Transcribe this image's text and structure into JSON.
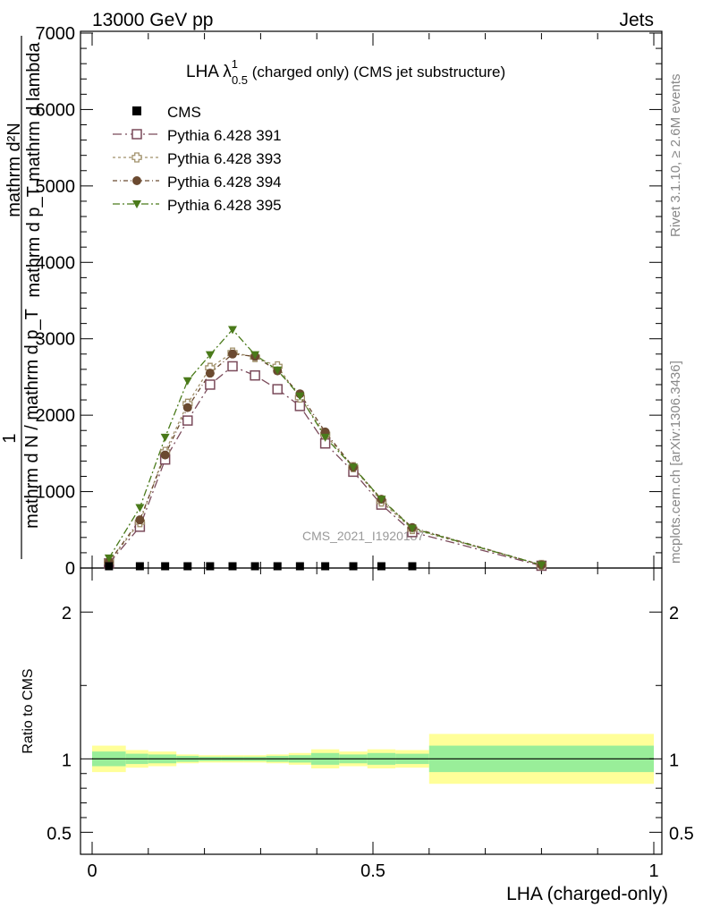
{
  "header": {
    "left": "13000 GeV pp",
    "right": "Jets"
  },
  "side_labels": {
    "rivet": "Rivet 3.1.10, ≥ 2.6M events",
    "mcplots": "mcplots.cern.ch [arXiv:1306.3436]"
  },
  "watermark": "CMS_2021_I1920187",
  "chart_data": {
    "type": "line",
    "title_main": "LHA λ",
    "title_sup": "1",
    "title_sub": "0.5",
    "title_rest": " (charged only) (CMS jet substructure)",
    "ylabel_top": "mathrm d²N",
    "ylabel_top_under": "mathrm d p_T mathrm d lambda",
    "ylabel_one": "1",
    "ylabel_bottom": "mathrm d N / mathrm d p_T",
    "xlabel": "LHA (charged-only)",
    "xlim": [
      0,
      1
    ],
    "ylim": [
      0,
      7000
    ],
    "y_ticks": [
      0,
      1000,
      2000,
      3000,
      4000,
      5000,
      6000,
      7000
    ],
    "y_tick_labels": [
      "0",
      "1000",
      "2000",
      "3000",
      "4000",
      "5000",
      "6000",
      "7000"
    ],
    "x_ticks": [
      0,
      0.5,
      1
    ],
    "x_tick_labels": [
      "0",
      "0.5",
      "1"
    ],
    "legend_position": "top-left",
    "bin_edges": [
      0,
      0.06,
      0.1,
      0.15,
      0.19,
      0.23,
      0.27,
      0.31,
      0.35,
      0.39,
      0.44,
      0.49,
      0.54,
      0.6,
      1.0
    ],
    "x": [
      0.03,
      0.085,
      0.13,
      0.17,
      0.21,
      0.25,
      0.29,
      0.33,
      0.37,
      0.415,
      0.465,
      0.515,
      0.57,
      0.8
    ],
    "cms": [
      0,
      5,
      8,
      10,
      12,
      12,
      12,
      11,
      10,
      9,
      7,
      5,
      3,
      0
    ],
    "series": [
      {
        "name": "Pythia 6.428 391",
        "marker": "open-square",
        "color": "#7a4a5a",
        "values": [
          60,
          540,
          1420,
          1930,
          2400,
          2640,
          2520,
          2340,
          2120,
          1630,
          1260,
          830,
          470,
          30
        ]
      },
      {
        "name": "Pythia 6.428 393",
        "marker": "open-cross",
        "color": "#a0906a",
        "values": [
          80,
          600,
          1520,
          2150,
          2620,
          2820,
          2760,
          2640,
          2230,
          1750,
          1320,
          870,
          510,
          40
        ]
      },
      {
        "name": "Pythia 6.428 394",
        "marker": "filled-circle",
        "color": "#6b4a30",
        "values": [
          80,
          630,
          1480,
          2100,
          2550,
          2800,
          2770,
          2580,
          2280,
          1780,
          1320,
          900,
          530,
          40
        ]
      },
      {
        "name": "Pythia 6.428 395",
        "marker": "filled-triangle",
        "color": "#4a7a1a",
        "values": [
          130,
          790,
          1710,
          2450,
          2790,
          3120,
          2790,
          2590,
          2250,
          1710,
          1320,
          900,
          520,
          40
        ]
      }
    ],
    "legend_cms": "CMS",
    "ratio": {
      "ylabel": "Ratio to CMS",
      "ylim": [
        0.35,
        2.3
      ],
      "y_ticks": [
        0.5,
        1,
        2
      ],
      "y_tick_labels": [
        "0.5",
        "1",
        "2"
      ],
      "band_inner": [
        0.05,
        0.035,
        0.03,
        0.02,
        0.015,
        0.015,
        0.015,
        0.02,
        0.025,
        0.04,
        0.03,
        0.04,
        0.035,
        0.09
      ],
      "band_outer": [
        0.09,
        0.06,
        0.05,
        0.03,
        0.025,
        0.025,
        0.025,
        0.03,
        0.04,
        0.065,
        0.05,
        0.065,
        0.06,
        0.17
      ],
      "inner_color": "#99ee99",
      "outer_color": "#ffff99"
    }
  }
}
